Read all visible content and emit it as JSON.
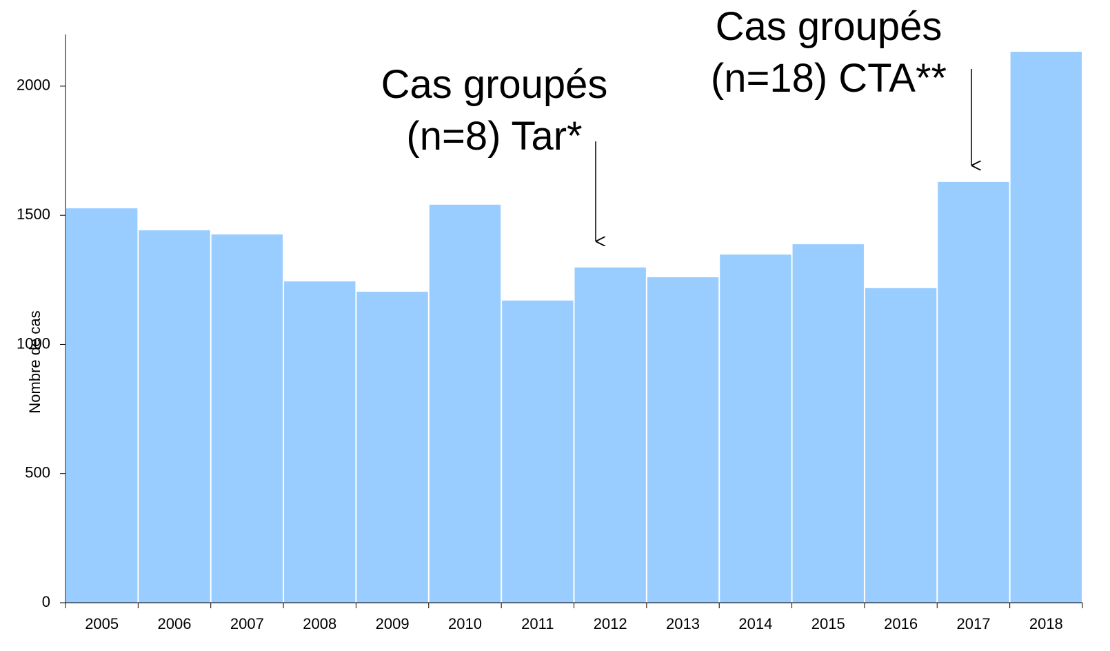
{
  "chart_data": {
    "type": "bar",
    "y_label": "Nombre de cas",
    "categories": [
      "2005",
      "2006",
      "2007",
      "2008",
      "2009",
      "2010",
      "2011",
      "2012",
      "2013",
      "2014",
      "2015",
      "2016",
      "2017",
      "2018"
    ],
    "values": [
      1527,
      1442,
      1426,
      1244,
      1204,
      1541,
      1170,
      1298,
      1260,
      1348,
      1388,
      1218,
      1629,
      2133
    ],
    "color": "#99ccff",
    "ylim": [
      0,
      2200
    ],
    "yticks": [
      0,
      500,
      1000,
      1500,
      2000
    ],
    "grid": false,
    "annotations": [
      {
        "lines": [
          "Cas groupés",
          "(n=8) Tar*"
        ]
      },
      {
        "lines": [
          "Cas groupés",
          "(n=18) CTA**"
        ]
      }
    ]
  }
}
